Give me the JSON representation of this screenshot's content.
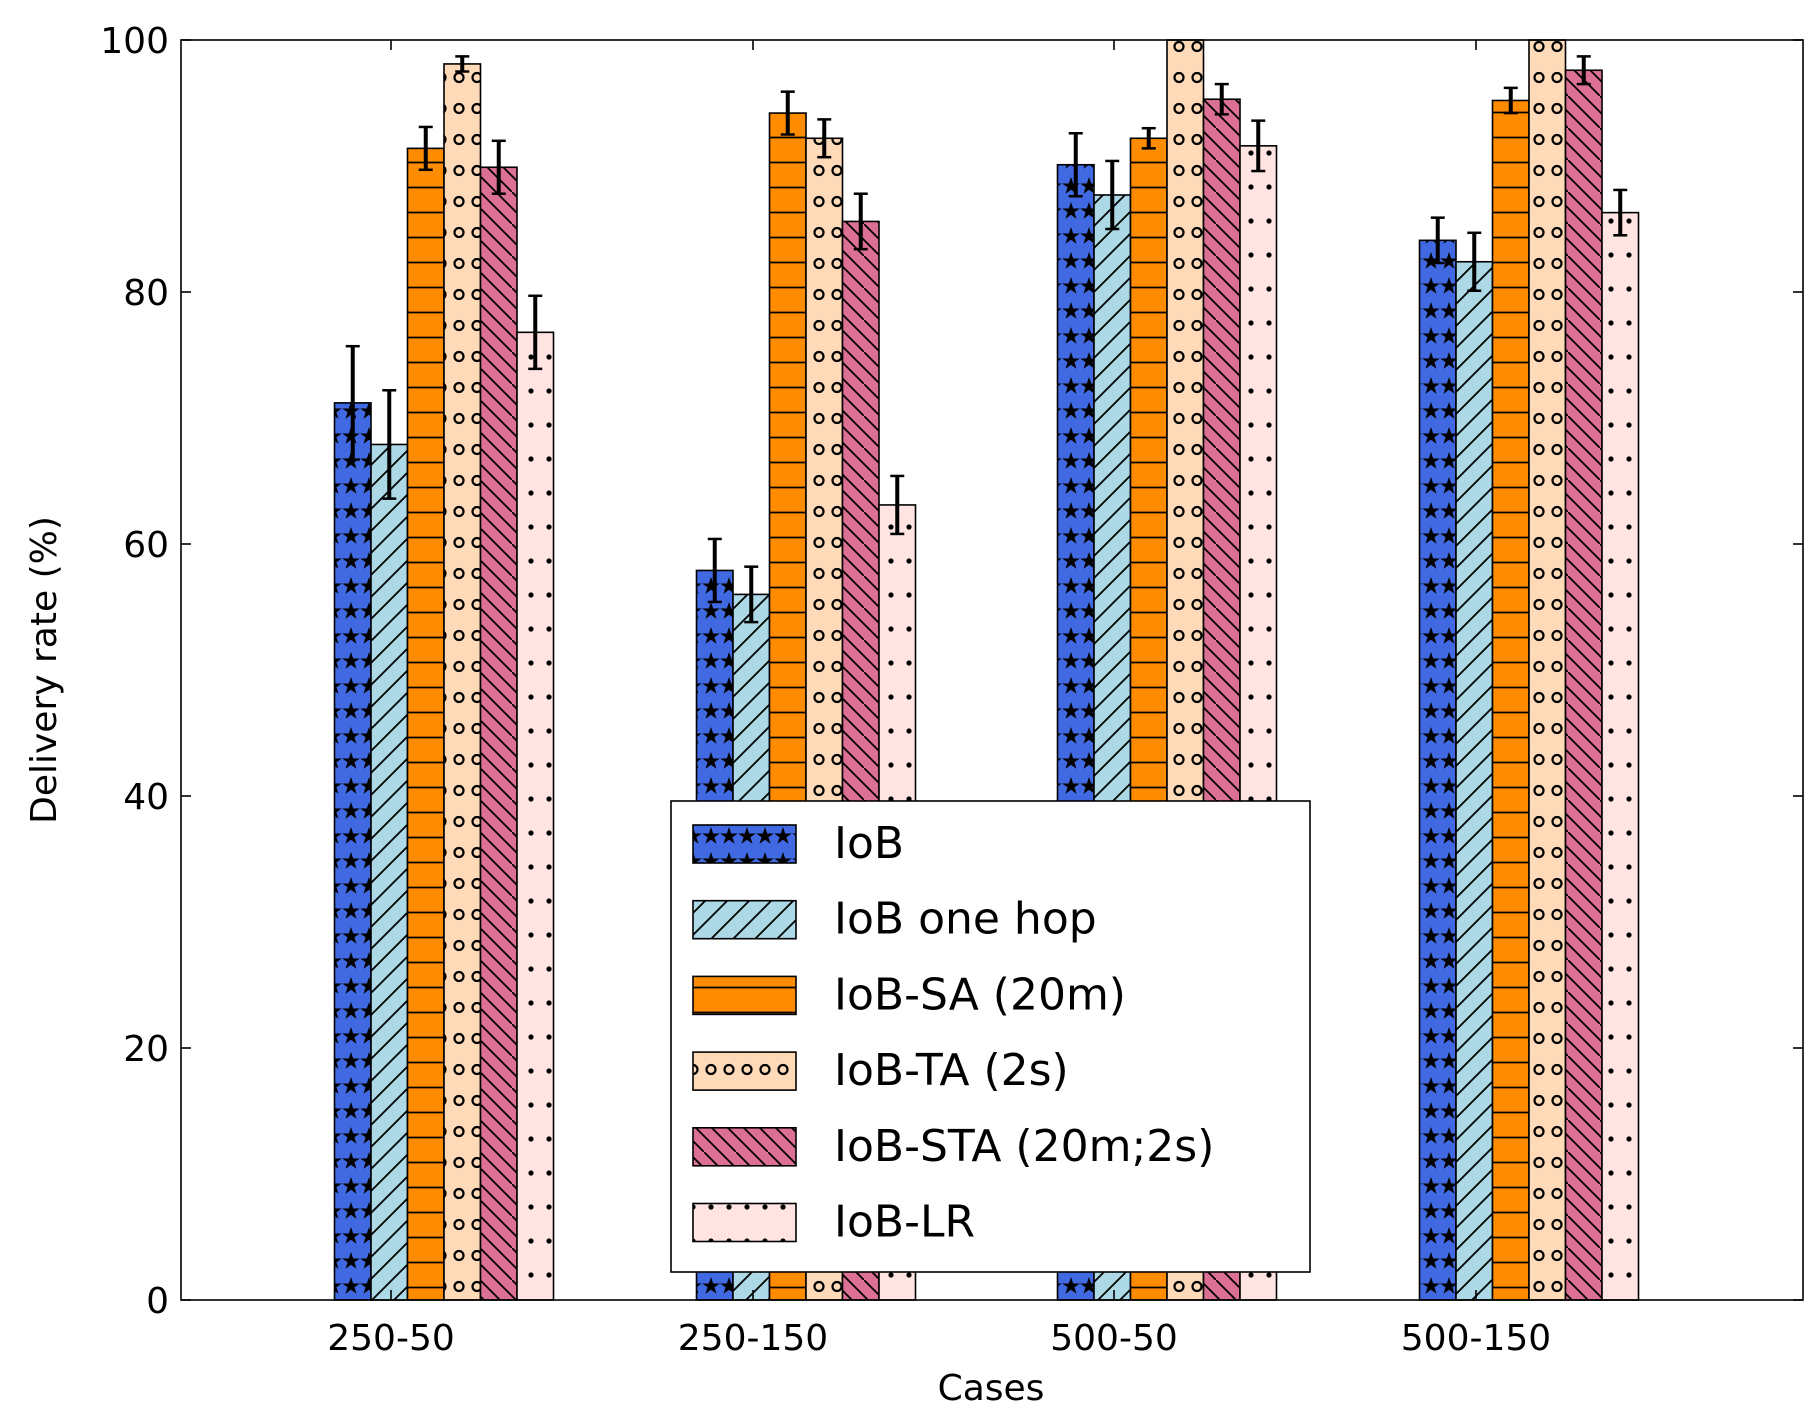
{
  "chart_data": {
    "type": "bar",
    "title": "",
    "xlabel": "Cases",
    "ylabel": "Delivery rate (%)",
    "ylim": [
      0,
      100
    ],
    "yticks": [
      0,
      20,
      40,
      60,
      80,
      100
    ],
    "categories": [
      "250-50",
      "250-150",
      "500-50",
      "500-150"
    ],
    "grid": false,
    "legend_position": "lower-center",
    "series": [
      {
        "name": "IoB",
        "color": "#4169e1",
        "pattern": "stars",
        "values": [
          71.2,
          57.9,
          90.1,
          84.1
        ],
        "errors": [
          4.5,
          2.5,
          2.5,
          1.8
        ]
      },
      {
        "name": "IoB one hop",
        "color": "#add8e6",
        "pattern": "diagonal-forward",
        "values": [
          67.9,
          56.0,
          87.7,
          82.4
        ],
        "errors": [
          4.3,
          2.2,
          2.7,
          2.3
        ]
      },
      {
        "name": "IoB-SA (20m)",
        "color": "#ff8c00",
        "pattern": "horizontal-lines",
        "values": [
          91.4,
          94.2,
          92.2,
          95.2
        ],
        "errors": [
          1.7,
          1.7,
          0.8,
          1.0
        ]
      },
      {
        "name": "IoB-TA (2s)",
        "color": "#ffdab9",
        "pattern": "circles",
        "values": [
          98.1,
          92.2,
          100.0,
          100.0
        ],
        "errors": [
          0.6,
          1.5,
          0.0,
          0.0
        ]
      },
      {
        "name": "IoB-STA (20m;2s)",
        "color": "#db7093",
        "pattern": "diagonal-back",
        "values": [
          89.9,
          85.6,
          95.3,
          97.6
        ],
        "errors": [
          2.1,
          2.2,
          1.2,
          1.1
        ]
      },
      {
        "name": "IoB-LR",
        "color": "#ffe4e1",
        "pattern": "dots",
        "values": [
          76.8,
          63.1,
          91.6,
          86.3
        ],
        "errors": [
          2.9,
          2.3,
          2.0,
          1.8
        ]
      }
    ]
  }
}
